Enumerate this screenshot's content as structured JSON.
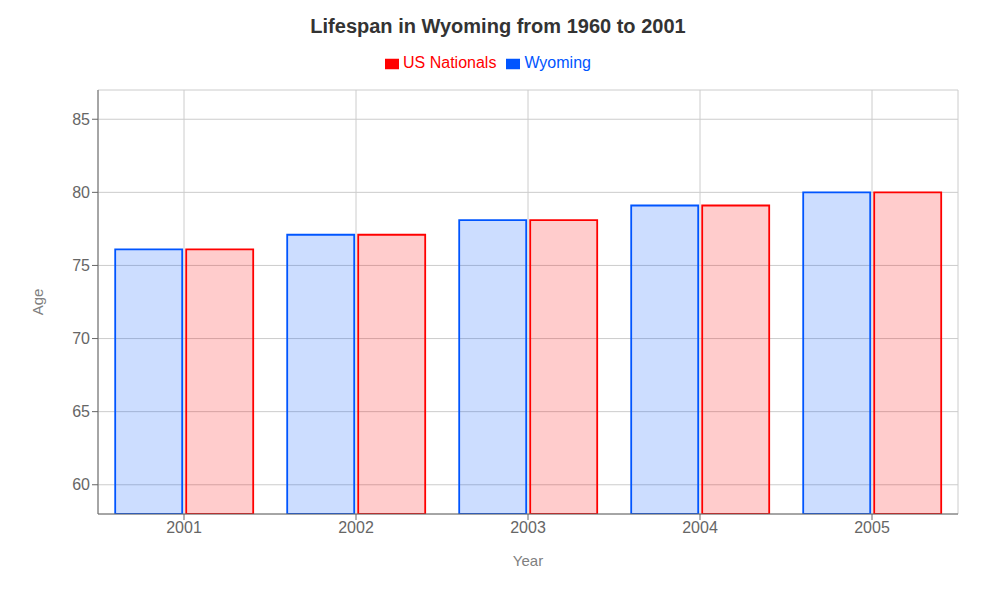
{
  "chart_data": {
    "type": "bar",
    "title": "Lifespan in Wyoming from 1960 to 2001",
    "x_label": "Year",
    "y_label": "Age",
    "categories": [
      "2001",
      "2002",
      "2003",
      "2004",
      "2005"
    ],
    "series": [
      {
        "name": "Wyoming",
        "color": "#0055ff",
        "values": [
          76.1,
          77.1,
          78.1,
          79.1,
          80.0
        ]
      },
      {
        "name": "US Nationals",
        "color": "#ff0000",
        "values": [
          76.1,
          77.1,
          78.1,
          79.1,
          80.0
        ]
      }
    ],
    "ylim": [
      58,
      87
    ],
    "yticks": [
      60,
      65,
      70,
      75,
      80,
      85
    ],
    "grid": true,
    "legend": "top"
  }
}
